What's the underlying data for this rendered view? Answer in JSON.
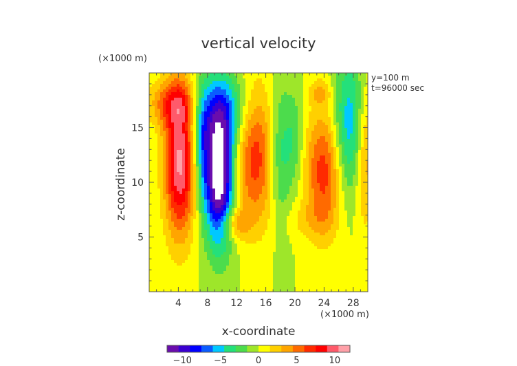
{
  "chart_data": {
    "type": "heatmap",
    "title": "vertical velocity",
    "xlabel": "x-coordinate",
    "ylabel": "z-coordinate",
    "x_unit_label": "(×1000 m)",
    "y_unit_label": "(×1000 m)",
    "annotations": [
      "y=100 m",
      "t=96000 sec"
    ],
    "xlim": [
      0,
      30
    ],
    "ylim": [
      0,
      20
    ],
    "xticks": [
      4,
      8,
      12,
      16,
      20,
      24,
      28
    ],
    "yticks": [
      5,
      10,
      15
    ],
    "colorbar": {
      "range": [
        -12,
        12
      ],
      "ticks": [
        -10,
        -5,
        0,
        5,
        10
      ],
      "colors": [
        "#6a0dad",
        "#3a00d0",
        "#0000ff",
        "#0a5cff",
        "#00c8ff",
        "#24e07a",
        "#4cdc4c",
        "#9ee62a",
        "#ffff00",
        "#ffd000",
        "#ffa500",
        "#ff6a00",
        "#ff2a00",
        "#ff0000",
        "#ff5a6a",
        "#ffa0a8"
      ]
    },
    "features": [
      {
        "x": 4.2,
        "z": 12.0,
        "sx": 1.5,
        "sz": 4.8,
        "amp": 11.0
      },
      {
        "x": 3.2,
        "z": 17.2,
        "sx": 2.4,
        "sz": 1.5,
        "amp": 5.0
      },
      {
        "x": 9.6,
        "z": 10.5,
        "sx": 1.4,
        "sz": 4.2,
        "amp": -14.0
      },
      {
        "x": 9.8,
        "z": 16.5,
        "sx": 2.8,
        "sz": 2.5,
        "amp": -6.0
      },
      {
        "x": 7.2,
        "z": 13.0,
        "sx": 0.8,
        "sz": 3.5,
        "amp": -4.0
      },
      {
        "x": 14.5,
        "z": 12.5,
        "sx": 2.0,
        "sz": 4.5,
        "amp": 7.0
      },
      {
        "x": 11.6,
        "z": 6.2,
        "sx": 1.4,
        "sz": 1.0,
        "amp": 4.0
      },
      {
        "x": 18.0,
        "z": 12.5,
        "sx": 1.1,
        "sz": 4.5,
        "amp": -4.0
      },
      {
        "x": 20.0,
        "z": 14.0,
        "sx": 0.9,
        "sz": 3.0,
        "amp": -2.5
      },
      {
        "x": 24.0,
        "z": 11.0,
        "sx": 1.8,
        "sz": 4.0,
        "amp": 7.0
      },
      {
        "x": 23.5,
        "z": 18.2,
        "sx": 1.0,
        "sz": 0.8,
        "amp": 3.0
      },
      {
        "x": 27.5,
        "z": 15.0,
        "sx": 1.7,
        "sz": 4.5,
        "amp": -6.0
      },
      {
        "x": 29.6,
        "z": 12.5,
        "sx": 1.0,
        "sz": 4.5,
        "amp": 5.0
      },
      {
        "x": 21.5,
        "z": 6.5,
        "sx": 2.5,
        "sz": 1.2,
        "amp": 1.5
      }
    ]
  }
}
